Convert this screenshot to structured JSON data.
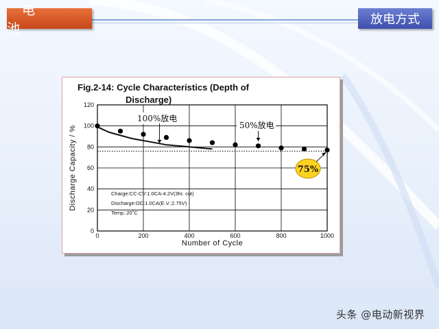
{
  "header": {
    "left_tab": "电　池",
    "right_tab": "放电方式"
  },
  "watermark": "头条 @电动新视界",
  "chart_data": {
    "type": "scatter",
    "title_line1": "Fig.2-14: Cycle Characteristics (Depth of",
    "title_line2": "Discharge)",
    "xlabel": "Number of Cycle",
    "ylabel": "Discharge Capacity / %",
    "xlim": [
      0,
      1000
    ],
    "ylim": [
      0,
      120
    ],
    "x_ticks": [
      0,
      200,
      400,
      600,
      800,
      1000
    ],
    "y_ticks": [
      0,
      20,
      40,
      60,
      80,
      100,
      120
    ],
    "grid": true,
    "series": [
      {
        "name": "50%放电",
        "points": [
          [
            0,
            100
          ],
          [
            100,
            95
          ],
          [
            200,
            92
          ],
          [
            300,
            89
          ],
          [
            400,
            86
          ],
          [
            500,
            84
          ],
          [
            600,
            82
          ],
          [
            700,
            81
          ],
          [
            800,
            79
          ],
          [
            900,
            78
          ],
          [
            1000,
            77
          ]
        ]
      },
      {
        "name": "100%放电",
        "curve": [
          [
            0,
            99
          ],
          [
            50,
            94
          ],
          [
            100,
            91
          ],
          [
            150,
            88
          ],
          [
            200,
            86
          ],
          [
            250,
            84
          ],
          [
            300,
            82
          ],
          [
            350,
            81
          ],
          [
            400,
            80
          ],
          [
            450,
            79
          ],
          [
            500,
            78
          ]
        ]
      }
    ],
    "reference_line_y": 76,
    "annotations": {
      "label_100": "100%放电",
      "label_50": "50%放电",
      "badge": "75%"
    },
    "conditions": [
      "Charge:CC-CV:1.0CA-4.2V(3hr. cut)",
      "Discharge:OC:1.0CA(E.V.:2.75V)",
      "Temp.:20˚C"
    ],
    "colors": {
      "badge_fill": "#ffd21f",
      "point": "#000000"
    }
  }
}
